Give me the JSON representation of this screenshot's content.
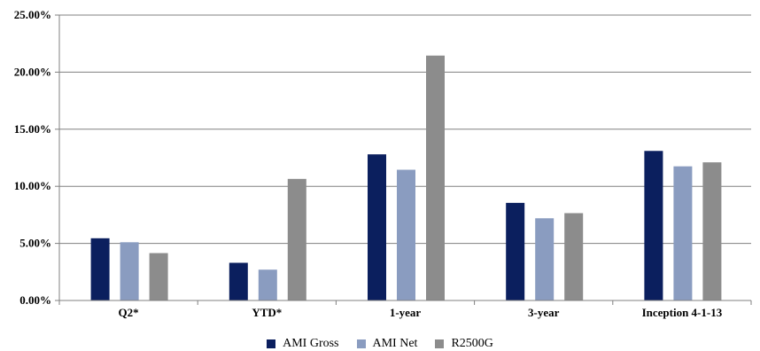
{
  "chart_data": {
    "type": "bar",
    "categories": [
      "Q2*",
      "YTD*",
      "1-year",
      "3-year",
      "Inception 4-1-13"
    ],
    "series": [
      {
        "name": "AMI Gross",
        "values": [
          5.45,
          3.3,
          12.8,
          8.55,
          13.1
        ],
        "color": "#0b1f5e"
      },
      {
        "name": "AMI Net",
        "values": [
          5.1,
          2.7,
          11.45,
          7.2,
          11.75
        ],
        "color": "#8a9cc0"
      },
      {
        "name": "R2500G",
        "values": [
          4.15,
          10.65,
          21.45,
          7.65,
          12.1
        ],
        "color": "#8c8c8c"
      }
    ],
    "yticks": [
      "0.00%",
      "5.00%",
      "10.00%",
      "15.00%",
      "20.00%",
      "25.00%"
    ],
    "ylim": [
      0,
      25
    ],
    "grid": true,
    "legend_position": "bottom"
  }
}
